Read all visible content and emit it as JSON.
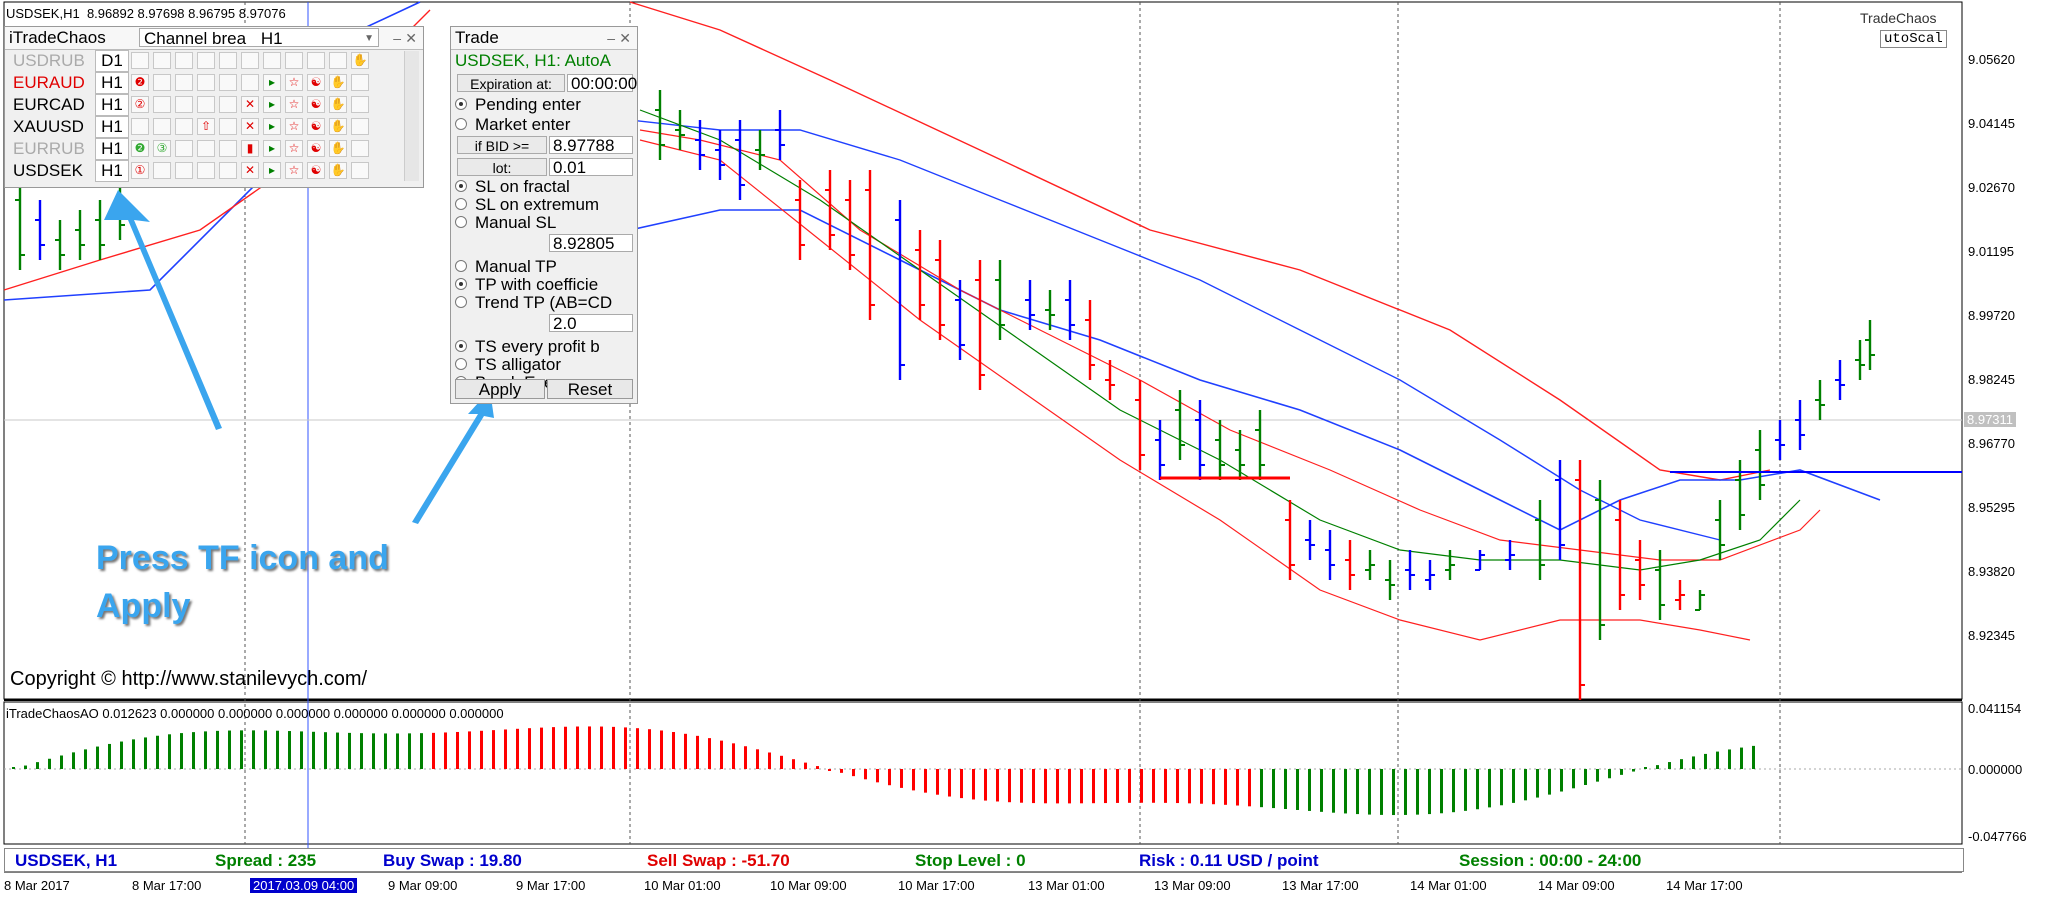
{
  "chart_header": {
    "symbol": "USDSEK,H1",
    "ohlc": "8.96892 8.97698 8.96795 8.97076"
  },
  "logo": {
    "name": "TradeChaos",
    "mode": "utoScal"
  },
  "price_axis": [
    "9.05620",
    "9.04145",
    "9.02670",
    "9.01195",
    "8.99720",
    "8.98245",
    "8.96770",
    "8.95295",
    "8.93820",
    "8.92345"
  ],
  "current_price": "8.97311",
  "indicator": {
    "header": "iTradeChaosAO 0.012623 0.000000 0.000000 0.000000 0.000000 0.000000 0.000000",
    "axis": [
      "0.041154",
      "0.000000",
      "-0.047766"
    ]
  },
  "time_axis": [
    "8 Mar 2017",
    "8 Mar 17:00",
    "2017.03.09 04:00",
    "9 Mar 09:00",
    "9 Mar 17:00",
    "10 Mar 01:00",
    "10 Mar 09:00",
    "10 Mar 17:00",
    "13 Mar 01:00",
    "13 Mar 09:00",
    "13 Mar 17:00",
    "14 Mar 01:00",
    "14 Mar 09:00",
    "14 Mar 17:00"
  ],
  "itradechaos_panel": {
    "title": "iTradeChaos",
    "strategy": "Channel brea",
    "timeframe": "H1",
    "rows": [
      {
        "symbol": "USDRUB",
        "tf": "D1",
        "color": "#aaaaaa"
      },
      {
        "symbol": "EURAUD",
        "tf": "H1",
        "color": "#e00000"
      },
      {
        "symbol": "EURCAD",
        "tf": "H1",
        "color": "#000000"
      },
      {
        "symbol": "XAUUSD",
        "tf": "H1",
        "color": "#000000"
      },
      {
        "symbol": "EURRUB",
        "tf": "H1",
        "color": "#aaaaaa"
      },
      {
        "symbol": "USDSEK",
        "tf": "H1",
        "color": "#000000"
      }
    ]
  },
  "trade_panel": {
    "title": "Trade",
    "header": "USDSEK, H1: AutoA",
    "expiration_label": "Expiration at:",
    "expiration_value": "00:00:00",
    "pending_enter": "Pending enter",
    "market_enter": "Market enter",
    "if_bid_label": "if BID >=",
    "if_bid_value": "8.97788",
    "lot_label": "lot:",
    "lot_value": "0.01",
    "sl_fractal": "SL on fractal",
    "sl_extremum": "SL on extremum",
    "manual_sl": "Manual SL",
    "sl_value": "8.92805",
    "manual_tp": "Manual TP",
    "tp_coeff": "TP with coefficie",
    "trend_tp": "Trend TP (AB=CD",
    "tp_value": "2.0",
    "ts_every": "TS every profit b",
    "ts_alligator": "TS alligator",
    "break_even": "Break Even",
    "apply": "Apply",
    "reset": "Reset"
  },
  "annotation": {
    "line1": "Press TF icon and",
    "line2": "Apply"
  },
  "copyright": "Copyright © http://www.stanilevych.com/",
  "status_bar": {
    "symbol": "USDSEK, H1",
    "spread": "Spread :  235",
    "buy_swap": "Buy Swap :  19.80",
    "sell_swap": "Sell Swap :  -51.70",
    "stop_level": "Stop Level :  0",
    "risk": "Risk :  0.11 USD / point",
    "session": "Session :  00:00 - 24:00"
  },
  "colors": {
    "bull": "#008000",
    "bear": "#ff0000",
    "neutral": "#0000ff",
    "annotation": "#3aa5ee"
  }
}
